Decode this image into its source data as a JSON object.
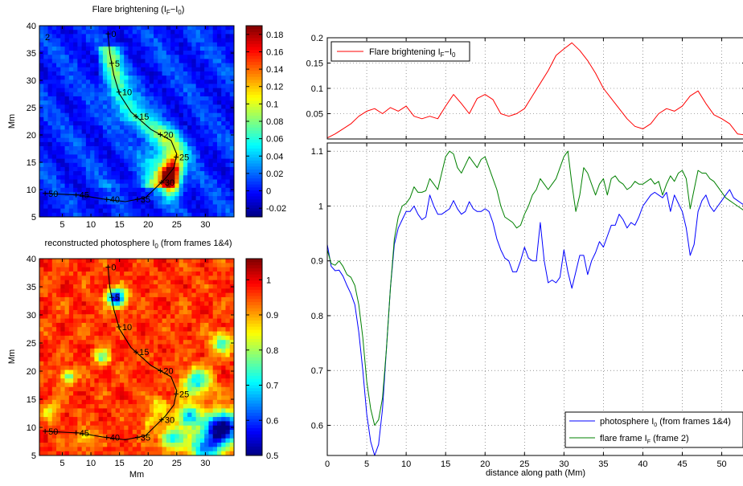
{
  "chart_data": [
    {
      "type": "heatmap",
      "title": "Flare brightening (I_F−I_0)",
      "title_main": "Flare brightening (I",
      "title_sub1": "F",
      "title_mid": "−I",
      "title_sub2": "0",
      "title_end": ")",
      "panel_label": "2",
      "xlabel": "",
      "ylabel": "Mm",
      "xlim": [
        1,
        35
      ],
      "ylim": [
        5,
        40
      ],
      "xticks": [
        "5",
        "10",
        "15",
        "20",
        "25",
        "30"
      ],
      "yticks": [
        "5",
        "10",
        "15",
        "20",
        "25",
        "30",
        "35",
        "40"
      ],
      "colormap": "jet",
      "clim": [
        -0.03,
        0.19
      ],
      "colorbar_ticks": [
        "-0.02",
        "0",
        "0.02",
        "0.04",
        "0.06",
        "0.08",
        "0.1",
        "0.12",
        "0.14",
        "0.16",
        "0.18"
      ],
      "path_markers": [
        "0",
        "5",
        "10",
        "15",
        "20",
        "25",
        "30",
        "35",
        "40",
        "45",
        "50"
      ]
    },
    {
      "type": "heatmap",
      "title": "reconstructed photosphere I_0 (from frames 1&4)",
      "title_main": "reconstructed photosphere I",
      "title_sub": "0",
      "title_end": " (from frames 1&4)",
      "xlabel": "Mm",
      "ylabel": "Mm",
      "xlim": [
        1,
        35
      ],
      "ylim": [
        5,
        40
      ],
      "xticks": [
        "5",
        "10",
        "15",
        "20",
        "25",
        "30"
      ],
      "yticks": [
        "5",
        "10",
        "15",
        "20",
        "25",
        "30",
        "35",
        "40"
      ],
      "colormap": "jet",
      "clim": [
        0.5,
        1.06
      ],
      "colorbar_ticks": [
        "0.5",
        "0.6",
        "0.7",
        "0.8",
        "0.9",
        "1"
      ],
      "path_markers": [
        "0",
        "5",
        "10",
        "15",
        "20",
        "25",
        "30",
        "35",
        "40",
        "45",
        "50"
      ]
    },
    {
      "type": "line",
      "xlim": [
        0,
        53
      ],
      "ylim": [
        0,
        0.2
      ],
      "yticks": [
        "0.05",
        "0.1",
        "0.15",
        "0.2"
      ],
      "grid": true,
      "legend_position": "top-left",
      "series": [
        {
          "name": "Flare brightening I_F−I_0",
          "legend_main": "Flare brightening I",
          "legend_sub1": "F",
          "legend_mid": "−I",
          "legend_sub2": "0",
          "color": "#ff0000",
          "x": [
            0,
            1,
            2,
            3,
            4,
            5,
            6,
            7,
            8,
            9,
            10,
            11,
            12,
            13,
            14,
            15,
            16,
            17,
            18,
            19,
            20,
            21,
            22,
            23,
            24,
            25,
            26,
            27,
            28,
            29,
            30,
            31,
            32,
            33,
            34,
            35,
            36,
            37,
            38,
            39,
            40,
            41,
            42,
            43,
            44,
            45,
            46,
            47,
            48,
            49,
            50,
            51,
            52,
            53
          ],
          "y": [
            0.002,
            0.01,
            0.02,
            0.03,
            0.045,
            0.055,
            0.06,
            0.05,
            0.062,
            0.055,
            0.065,
            0.045,
            0.04,
            0.045,
            0.04,
            0.065,
            0.088,
            0.07,
            0.05,
            0.08,
            0.088,
            0.078,
            0.05,
            0.045,
            0.05,
            0.06,
            0.085,
            0.11,
            0.135,
            0.165,
            0.178,
            0.19,
            0.175,
            0.155,
            0.13,
            0.1,
            0.08,
            0.06,
            0.04,
            0.025,
            0.02,
            0.03,
            0.05,
            0.06,
            0.055,
            0.065,
            0.085,
            0.095,
            0.07,
            0.048,
            0.04,
            0.03,
            0.01,
            0.008
          ]
        }
      ]
    },
    {
      "type": "line",
      "xlabel": "distance along path (Mm)",
      "xlim": [
        0,
        53
      ],
      "ylim": [
        0.545,
        1.115
      ],
      "xticks": [
        "0",
        "5",
        "10",
        "15",
        "20",
        "25",
        "30",
        "35",
        "40",
        "45",
        "50"
      ],
      "yticks": [
        "0.6",
        "0.7",
        "0.8",
        "0.9",
        "1",
        "1.1"
      ],
      "grid": true,
      "legend_position": "bottom-right",
      "series": [
        {
          "name": "photosphere I_0 (from frames 1&4)",
          "legend_main": "photosphere I",
          "legend_sub": "0",
          "legend_end": " (from frames 1&4)",
          "color": "#0000ff",
          "x": [
            0,
            0.5,
            1,
            1.5,
            2,
            2.5,
            3,
            3.5,
            4,
            4.5,
            5,
            5.5,
            6,
            6.5,
            7,
            7.5,
            8,
            8.5,
            9,
            9.5,
            10,
            10.5,
            11,
            11.5,
            12,
            12.5,
            13,
            13.5,
            14,
            14.5,
            15,
            15.5,
            16,
            16.5,
            17,
            17.5,
            18,
            18.5,
            19,
            19.5,
            20,
            20.5,
            21,
            21.5,
            22,
            22.5,
            23,
            23.5,
            24,
            24.5,
            25,
            25.5,
            26,
            26.5,
            27,
            27.5,
            28,
            28.5,
            29,
            29.5,
            30,
            30.5,
            31,
            31.5,
            32,
            32.5,
            33,
            33.5,
            34,
            34.5,
            35,
            35.5,
            36,
            36.5,
            37,
            37.5,
            38,
            38.5,
            39,
            39.5,
            40,
            40.5,
            41,
            41.5,
            42,
            42.5,
            43,
            43.5,
            44,
            44.5,
            45,
            45.5,
            46,
            46.5,
            47,
            47.5,
            48,
            48.5,
            49,
            49.5,
            50,
            50.5,
            51,
            51.5,
            52,
            52.5,
            53
          ],
          "y": [
            0.93,
            0.89,
            0.882,
            0.883,
            0.872,
            0.855,
            0.84,
            0.82,
            0.77,
            0.7,
            0.62,
            0.57,
            0.545,
            0.565,
            0.63,
            0.74,
            0.85,
            0.93,
            0.96,
            0.975,
            0.99,
            0.99,
            1.0,
            0.985,
            0.975,
            0.98,
            1.02,
            1.0,
            0.985,
            0.985,
            0.99,
            0.995,
            1.01,
            0.995,
            0.985,
            0.99,
            1.008,
            0.995,
            0.99,
            0.99,
            0.995,
            0.99,
            0.97,
            0.94,
            0.92,
            0.905,
            0.9,
            0.88,
            0.88,
            0.9,
            0.925,
            0.905,
            0.9,
            0.9,
            0.97,
            0.9,
            0.86,
            0.865,
            0.86,
            0.87,
            0.92,
            0.88,
            0.85,
            0.88,
            0.91,
            0.91,
            0.875,
            0.9,
            0.915,
            0.935,
            0.925,
            0.945,
            0.965,
            0.965,
            0.985,
            0.975,
            0.96,
            0.97,
            0.965,
            0.98,
            1.0,
            1.01,
            1.02,
            1.025,
            1.02,
            1.015,
            1.025,
            0.99,
            1.02,
            1.005,
            0.99,
            0.96,
            0.91,
            0.93,
            0.99,
            1.01,
            1.02,
            1.0,
            0.99,
            1.0,
            1.01,
            1.02,
            1.03,
            1.015,
            1.01,
            1.005,
            1.0
          ]
        },
        {
          "name": "flare frame I_F (frame 2)",
          "legend_main": "flare frame I",
          "legend_sub": "F",
          "legend_end": " (frame 2)",
          "color": "#008000",
          "x": [
            0,
            0.5,
            1,
            1.5,
            2,
            2.5,
            3,
            3.5,
            4,
            4.5,
            5,
            5.5,
            6,
            6.5,
            7,
            7.5,
            8,
            8.5,
            9,
            9.5,
            10,
            10.5,
            11,
            11.5,
            12,
            12.5,
            13,
            13.5,
            14,
            14.5,
            15,
            15.5,
            16,
            16.5,
            17,
            17.5,
            18,
            18.5,
            19,
            19.5,
            20,
            20.5,
            21,
            21.5,
            22,
            22.5,
            23,
            23.5,
            24,
            24.5,
            25,
            25.5,
            26,
            26.5,
            27,
            27.5,
            28,
            28.5,
            29,
            29.5,
            30,
            30.5,
            31,
            31.5,
            32,
            32.5,
            33,
            33.5,
            34,
            34.5,
            35,
            35.5,
            36,
            36.5,
            37,
            37.5,
            38,
            38.5,
            39,
            39.5,
            40,
            40.5,
            41,
            41.5,
            42,
            42.5,
            43,
            43.5,
            44,
            44.5,
            45,
            45.5,
            46,
            46.5,
            47,
            47.5,
            48,
            48.5,
            49,
            49.5,
            50,
            50.5,
            51,
            51.5,
            52,
            52.5,
            53
          ],
          "y": [
            0.92,
            0.895,
            0.892,
            0.9,
            0.89,
            0.875,
            0.87,
            0.855,
            0.82,
            0.76,
            0.68,
            0.63,
            0.6,
            0.61,
            0.65,
            0.74,
            0.85,
            0.94,
            0.98,
            1.0,
            1.005,
            1.015,
            1.035,
            1.025,
            1.025,
            1.028,
            1.05,
            1.04,
            1.03,
            1.06,
            1.09,
            1.1,
            1.095,
            1.07,
            1.06,
            1.075,
            1.09,
            1.08,
            1.07,
            1.085,
            1.09,
            1.07,
            1.05,
            1.03,
            1.0,
            0.98,
            0.975,
            0.97,
            0.96,
            0.965,
            0.985,
            1.0,
            1.02,
            1.03,
            1.05,
            1.04,
            1.03,
            1.04,
            1.05,
            1.07,
            1.09,
            1.1,
            1.04,
            0.99,
            1.02,
            1.07,
            1.06,
            1.04,
            1.02,
            1.04,
            1.05,
            1.02,
            1.05,
            1.055,
            1.045,
            1.04,
            1.03,
            1.035,
            1.045,
            1.04,
            1.04,
            1.045,
            1.05,
            1.04,
            1.045,
            1.02,
            1.04,
            1.055,
            1.045,
            1.06,
            1.065,
            1.05,
            0.995,
            1.03,
            1.065,
            1.06,
            1.06,
            1.05,
            1.045,
            1.035,
            1.025,
            1.015,
            1.01,
            1.005,
            1.0,
            0.995,
            0.99
          ]
        }
      ]
    }
  ]
}
